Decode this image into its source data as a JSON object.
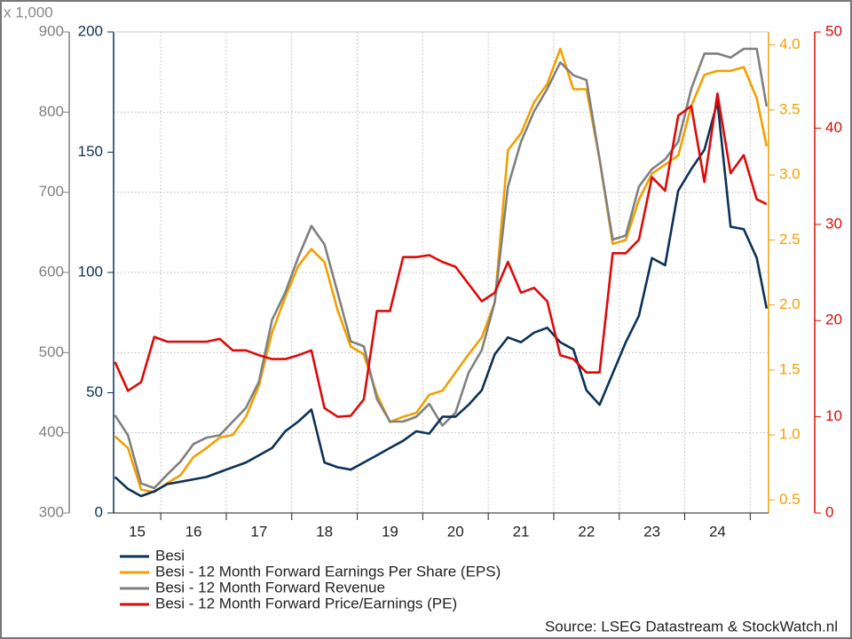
{
  "chart_data": {
    "type": "line",
    "y3_scale_label": "x 1,000",
    "source": "Source: LSEG Datastream & StockWatch.nl",
    "x": [
      2015.3,
      2015.5,
      2015.7,
      2015.9,
      2016.1,
      2016.3,
      2016.5,
      2016.7,
      2016.9,
      2017.1,
      2017.3,
      2017.5,
      2017.7,
      2017.9,
      2018.1,
      2018.3,
      2018.5,
      2018.7,
      2018.9,
      2019.1,
      2019.3,
      2019.5,
      2019.7,
      2019.9,
      2020.1,
      2020.3,
      2020.5,
      2020.7,
      2020.9,
      2021.1,
      2021.3,
      2021.5,
      2021.7,
      2021.9,
      2022.1,
      2022.3,
      2022.5,
      2022.7,
      2022.9,
      2023.1,
      2023.3,
      2023.5,
      2023.7,
      2023.9,
      2024.1,
      2024.3,
      2024.5,
      2024.7,
      2024.9,
      2025.1,
      2025.25
    ],
    "xlim": [
      2015.28,
      2025.28
    ],
    "xticks": [
      {
        "value": 2015.5,
        "label": "15"
      },
      {
        "value": 2016.5,
        "label": "16"
      },
      {
        "value": 2017.5,
        "label": "17"
      },
      {
        "value": 2018.5,
        "label": "18"
      },
      {
        "value": 2019.5,
        "label": "19"
      },
      {
        "value": 2020.5,
        "label": "20"
      },
      {
        "value": 2021.5,
        "label": "21"
      },
      {
        "value": 2022.5,
        "label": "22"
      },
      {
        "value": 2023.5,
        "label": "23"
      },
      {
        "value": 2024.5,
        "label": "24"
      }
    ],
    "ylim": [
      0,
      200
    ],
    "yticks": [
      0,
      50,
      100,
      150,
      200
    ],
    "y2lim": [
      0,
      50
    ],
    "y2ticks": [
      0,
      10,
      20,
      30,
      40,
      50
    ],
    "y3lim": [
      300,
      900
    ],
    "y3ticks": [
      300,
      400,
      500,
      600,
      700,
      800,
      900
    ],
    "y4lim": [
      0.4,
      4.1
    ],
    "y4ticks": [
      {
        "value": 0.5,
        "label": "0.5"
      },
      {
        "value": 1,
        "label": "1.0"
      },
      {
        "value": 1.5,
        "label": "1.5"
      },
      {
        "value": 2,
        "label": "2.0"
      },
      {
        "value": 2.5,
        "label": "2.5"
      },
      {
        "value": 3,
        "label": "3.0"
      },
      {
        "value": 3.5,
        "label": "3.5"
      },
      {
        "value": 4,
        "label": "4.0"
      }
    ],
    "grid": true,
    "series": [
      {
        "name": "Besi",
        "color": "#0d3256",
        "axis": "y",
        "values": [
          15,
          10,
          7,
          9,
          12,
          13,
          14,
          15,
          17,
          19,
          21,
          24,
          27,
          34,
          38,
          43,
          21,
          19,
          18,
          21,
          24,
          27,
          30,
          34,
          33,
          40,
          40,
          45,
          51,
          66,
          73,
          71,
          75,
          77,
          71,
          68,
          51,
          45,
          58,
          71,
          82,
          106,
          103,
          134,
          143,
          151,
          171,
          119,
          118,
          106,
          85
        ]
      },
      {
        "name": "Besi - 12 Month Forward Earnings Per Share (EPS)",
        "color": "#f0a000",
        "axis": "y4",
        "values": [
          0.99,
          0.9,
          0.58,
          0.56,
          0.63,
          0.69,
          0.83,
          0.9,
          0.98,
          1.0,
          1.14,
          1.38,
          1.79,
          2.06,
          2.3,
          2.43,
          2.33,
          1.96,
          1.68,
          1.62,
          1.31,
          1.1,
          1.14,
          1.17,
          1.31,
          1.34,
          1.48,
          1.62,
          1.75,
          2.02,
          3.19,
          3.32,
          3.56,
          3.7,
          3.97,
          3.66,
          3.66,
          3.12,
          2.47,
          2.5,
          2.81,
          3.01,
          3.08,
          3.15,
          3.53,
          3.77,
          3.8,
          3.8,
          3.83,
          3.59,
          3.22
        ]
      },
      {
        "name": "Besi - 12 Month Forward Revenue",
        "color": "#808080",
        "axis": "y3",
        "values": [
          422,
          397,
          337,
          331,
          348,
          364,
          386,
          394,
          397,
          414,
          431,
          464,
          541,
          575,
          619,
          658,
          635,
          575,
          514,
          508,
          442,
          414,
          414,
          420,
          436,
          409,
          425,
          475,
          503,
          563,
          707,
          763,
          801,
          829,
          862,
          846,
          840,
          741,
          641,
          646,
          707,
          729,
          741,
          763,
          829,
          873,
          873,
          868,
          879,
          879,
          807
        ]
      },
      {
        "name": "Besi - 12 Month Forward Price/Earnings (PE)",
        "color": "#dd0a0a",
        "axis": "y2",
        "values": [
          15.7,
          12.7,
          13.6,
          18.3,
          17.8,
          17.8,
          17.8,
          17.8,
          18.1,
          16.9,
          16.9,
          16.4,
          16.0,
          16.0,
          16.4,
          16.9,
          10.9,
          10.0,
          10.1,
          11.8,
          21.0,
          21.0,
          26.6,
          26.6,
          26.8,
          26.1,
          25.6,
          23.8,
          22.0,
          22.9,
          26.1,
          22.9,
          23.4,
          22.0,
          16.4,
          16.0,
          14.6,
          14.6,
          27.0,
          27.0,
          28.4,
          34.9,
          33.5,
          41.3,
          42.3,
          34.4,
          43.6,
          35.3,
          37.2,
          32.6,
          32.1
        ]
      }
    ]
  }
}
